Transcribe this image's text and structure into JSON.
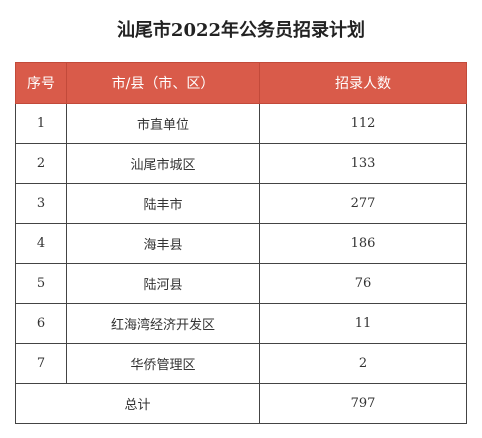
{
  "title": "汕尾市2022年公务员招录计划",
  "table": {
    "headers": [
      "序号",
      "市/县（市、区）",
      "招录人数"
    ],
    "rows": [
      {
        "index": "1",
        "region": "市直单位",
        "count": "112"
      },
      {
        "index": "2",
        "region": "汕尾市城区",
        "count": "133"
      },
      {
        "index": "3",
        "region": "陆丰市",
        "count": "277"
      },
      {
        "index": "4",
        "region": "海丰县",
        "count": "186"
      },
      {
        "index": "5",
        "region": "陆河县",
        "count": "76"
      },
      {
        "index": "6",
        "region": "红海湾经济开发区",
        "count": "11"
      },
      {
        "index": "7",
        "region": "华侨管理区",
        "count": "2"
      }
    ],
    "total": {
      "label": "总计",
      "count": "797"
    }
  },
  "colors": {
    "header_bg": "#d95b4a",
    "header_text": "#ffffff",
    "border": "#444444"
  }
}
